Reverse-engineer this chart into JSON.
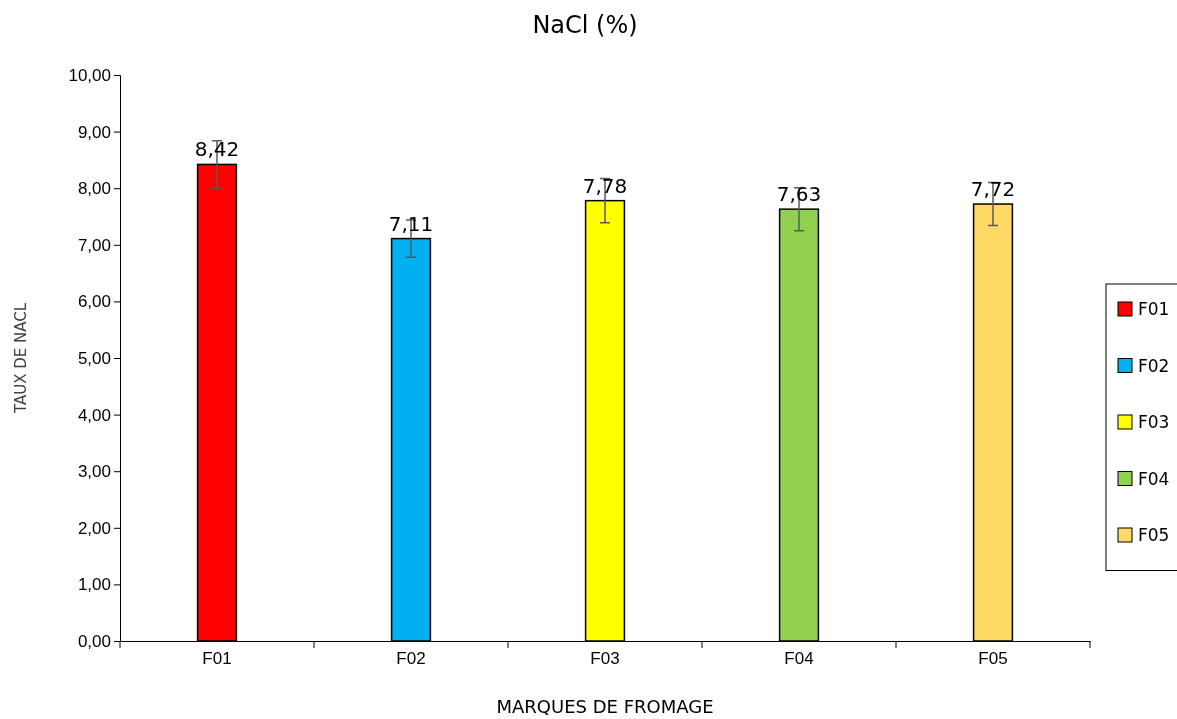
{
  "chart_data": {
    "type": "bar",
    "title": "NaCl (%)",
    "xlabel": "MARQUES DE FROMAGE",
    "ylabel": "TAUX DE NACL",
    "categories": [
      "F01",
      "F02",
      "F03",
      "F04",
      "F05"
    ],
    "series": [
      {
        "name": "F01",
        "color": "#ff0000",
        "values": [
          8.42,
          null,
          null,
          null,
          null
        ],
        "errors": [
          0.42,
          null,
          null,
          null,
          null
        ],
        "value_labels": [
          "8,42",
          null,
          null,
          null,
          null
        ]
      },
      {
        "name": "F02",
        "color": "#00b0f0",
        "values": [
          null,
          7.11,
          null,
          null,
          null
        ],
        "errors": [
          null,
          0.33,
          null,
          null,
          null
        ],
        "value_labels": [
          null,
          "7,11",
          null,
          null,
          null
        ]
      },
      {
        "name": "F03",
        "color": "#ffff00",
        "values": [
          null,
          null,
          7.78,
          null,
          null
        ],
        "errors": [
          null,
          null,
          0.39,
          null,
          null
        ],
        "value_labels": [
          null,
          null,
          "7,78",
          null,
          null
        ]
      },
      {
        "name": "F04",
        "color": "#92d050",
        "values": [
          null,
          null,
          null,
          7.63,
          null
        ],
        "errors": [
          null,
          null,
          null,
          0.38,
          null
        ],
        "value_labels": [
          null,
          null,
          null,
          "7,63",
          null
        ]
      },
      {
        "name": "F05",
        "color": "#ffd966",
        "values": [
          null,
          null,
          null,
          null,
          7.72
        ],
        "errors": [
          null,
          null,
          null,
          null,
          0.38
        ],
        "value_labels": [
          null,
          null,
          null,
          null,
          "7,72"
        ]
      }
    ],
    "ylim": [
      0,
      10
    ],
    "yticks": [
      {
        "value": 0,
        "label": "0,00"
      },
      {
        "value": 1,
        "label": "1,00"
      },
      {
        "value": 2,
        "label": "2,00"
      },
      {
        "value": 3,
        "label": "3,00"
      },
      {
        "value": 4,
        "label": "4,00"
      },
      {
        "value": 5,
        "label": "5,00"
      },
      {
        "value": 6,
        "label": "6,00"
      },
      {
        "value": 7,
        "label": "7,00"
      },
      {
        "value": 8,
        "label": "8,00"
      },
      {
        "value": 9,
        "label": "9,00"
      },
      {
        "value": 10,
        "label": "10,00"
      }
    ],
    "grid": false,
    "legend": "right"
  }
}
